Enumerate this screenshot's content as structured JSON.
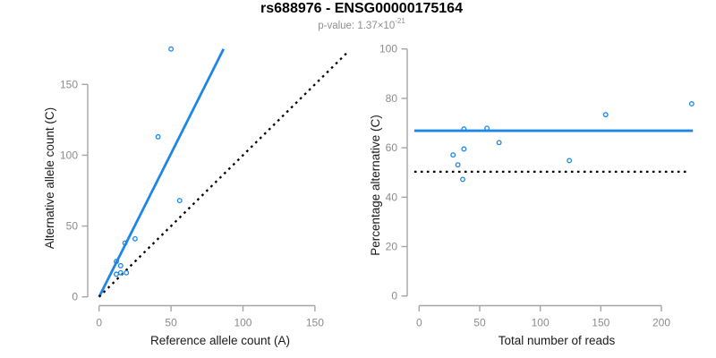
{
  "header": {
    "title": "rs688976 - ENSG00000175164",
    "pvalue_prefix": "p-value: 1.37×10",
    "pvalue_exponent": "-21"
  },
  "colors": {
    "accent_blue": "#1E87E5",
    "identity_black": "#000000",
    "axis_line_gray": "#A6A6A6",
    "tick_label_gray": "#8C8C8C",
    "axis_title_black": "#1A1A1A"
  },
  "chart_data": [
    {
      "type": "scatter",
      "name": "allele-count-scatter",
      "xlabel": "Reference allele count (A)",
      "ylabel": "Alternative allele count (C)",
      "xlim": [
        0,
        150
      ],
      "ylim": [
        0,
        150
      ],
      "xticks": [
        0,
        50,
        100,
        150
      ],
      "yticks": [
        0,
        50,
        100,
        150
      ],
      "grid": false,
      "legend": "none",
      "points": [
        [
          50,
          175
        ],
        [
          41,
          113
        ],
        [
          56,
          68
        ],
        [
          25,
          41
        ],
        [
          18,
          38
        ],
        [
          12,
          25
        ],
        [
          15,
          22
        ],
        [
          12,
          16
        ],
        [
          15,
          17
        ],
        [
          19,
          17
        ]
      ],
      "lines": [
        {
          "name": "fit-line",
          "style": "solid",
          "color": "accent_blue",
          "x1": 0,
          "y1": 0,
          "x2": 86.5,
          "y2": 175
        },
        {
          "name": "identity-line",
          "style": "dotted",
          "color": "identity_black",
          "x1": 0,
          "y1": 0,
          "x2": 173.5,
          "y2": 173.5
        }
      ]
    },
    {
      "type": "scatter",
      "name": "percentage-vs-reads-scatter",
      "xlabel": "Total number of reads",
      "ylabel": "Percentage alternative (C)",
      "xlim": [
        0,
        200
      ],
      "ylim": [
        0,
        100
      ],
      "xticks": [
        0,
        50,
        100,
        150,
        200
      ],
      "yticks": [
        0,
        20,
        40,
        60,
        80,
        100
      ],
      "grid": false,
      "legend": "none",
      "points": [
        [
          225,
          77.8
        ],
        [
          154,
          73.4
        ],
        [
          124,
          54.8
        ],
        [
          66,
          62.1
        ],
        [
          56,
          67.9
        ],
        [
          37,
          67.6
        ],
        [
          37,
          59.5
        ],
        [
          28,
          57.1
        ],
        [
          32,
          53.1
        ],
        [
          36,
          47.2
        ]
      ],
      "lines": [
        {
          "name": "mean-percentage-line",
          "style": "solid",
          "color": "accent_blue",
          "x1": -4,
          "y1": 66.9,
          "x2": 226,
          "y2": 66.9
        },
        {
          "name": "fifty-percent-line",
          "style": "dotted",
          "color": "identity_black",
          "x1": -4,
          "y1": 50.3,
          "x2": 222,
          "y2": 50.3
        }
      ]
    }
  ]
}
